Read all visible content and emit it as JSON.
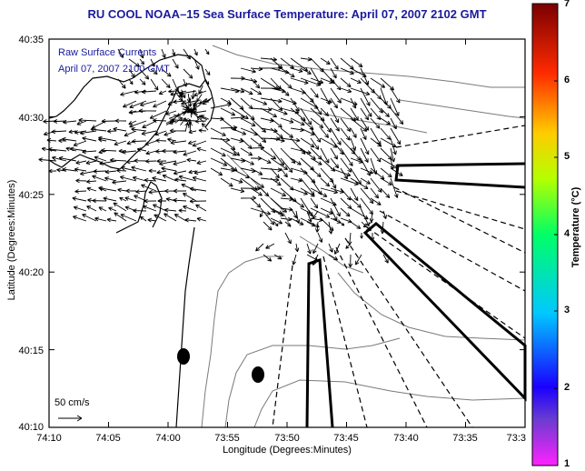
{
  "title": "RU COOL  NOAA–15  Sea Surface Temperature:  April 07, 2007 2102 GMT",
  "inset": {
    "line1": "Raw Surface Currents",
    "line2": "April 07, 2007 2100 GMT"
  },
  "axes": {
    "xlabel": "Longitude (Degrees:Minutes)",
    "ylabel": "Latitude (Degrees:Minutes)",
    "xticks": [
      "74:10",
      "74:05",
      "74:00",
      "73:55",
      "73:50",
      "73:45",
      "73:40",
      "73:35",
      "73:3"
    ],
    "yticks": [
      "40:35",
      "40:30",
      "40:25",
      "40:20",
      "40:15",
      "40:10"
    ]
  },
  "scale": {
    "label": "50 cm/s"
  },
  "colorbar": {
    "label": "Temperature (°C)",
    "ticks": [
      "7",
      "6",
      "5",
      "4",
      "3",
      "2",
      "1"
    ]
  },
  "colors": {
    "title": "#1a1a9c",
    "coast": "#000000",
    "bathy": "#7a7a7a"
  }
}
